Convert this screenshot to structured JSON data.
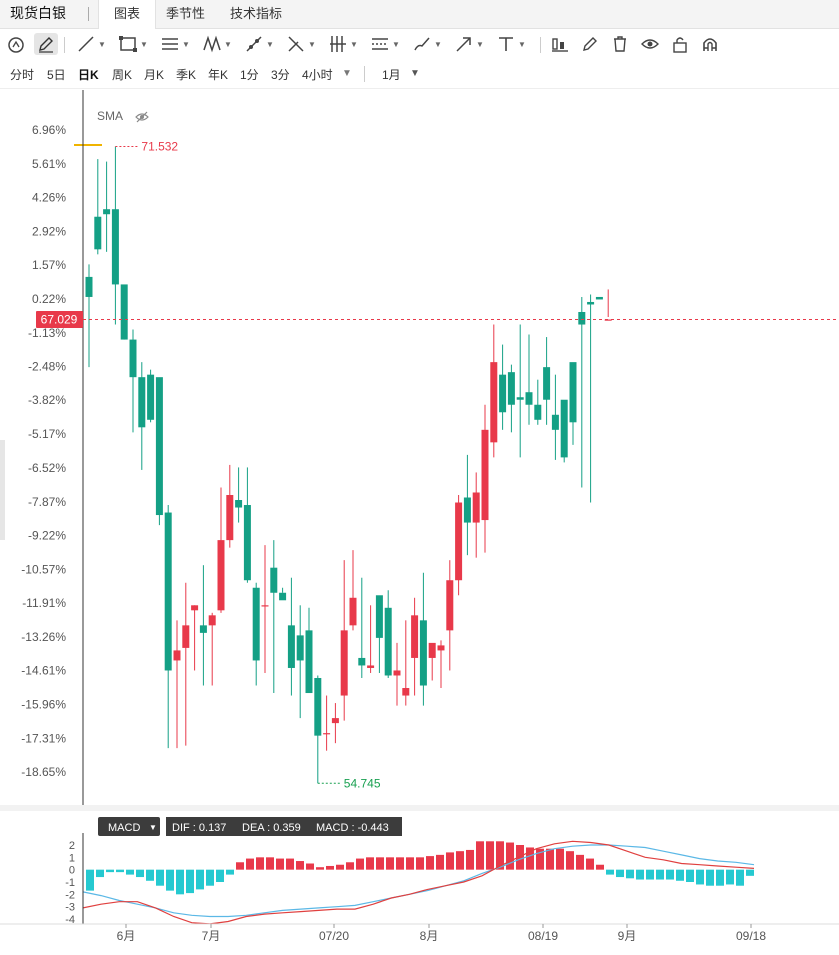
{
  "tabs": {
    "title": "现货白银",
    "chart": "图表",
    "seasonal": "季节性",
    "indicators": "技术指标"
  },
  "toolbar": {
    "icons": [
      "circle-cursor-icon",
      "pencil-icon",
      "trend-line-icon",
      "rectangle-icon",
      "parallel-lines-icon",
      "zigzag-icon",
      "ray-icon",
      "fork-icon",
      "fib-levels-icon",
      "measure-icon",
      "brush-icon",
      "arrow-icon",
      "text-icon",
      "bar-style-icon",
      "edit-icon",
      "trash-icon",
      "eye-icon",
      "lock-icon",
      "magnet-icon"
    ]
  },
  "periods": {
    "items": [
      "分时",
      "5日",
      "日K",
      "周K",
      "月K",
      "季K",
      "年K",
      "1分",
      "3分",
      "4小时"
    ],
    "selected": "日K",
    "range": "1月"
  },
  "colors": {
    "up": "#e8394a",
    "down": "#14a085",
    "dif": "#e0403f",
    "dea": "#5bb8e6"
  },
  "chart_data": {
    "type": "candlestick",
    "sma_label": "SMA",
    "y_axis_format": "percent",
    "y_ticks": [
      "6.96%",
      "5.61%",
      "4.26%",
      "2.92%",
      "1.57%",
      "0.22%",
      "-1.13%",
      "-2.48%",
      "-3.82%",
      "-5.17%",
      "-6.52%",
      "-7.87%",
      "-9.22%",
      "-10.57%",
      "-11.91%",
      "-13.26%",
      "-14.61%",
      "-15.96%",
      "-17.31%",
      "-18.65%"
    ],
    "y_tick_values": [
      6.96,
      5.61,
      4.26,
      2.92,
      1.57,
      0.22,
      -1.13,
      -2.48,
      -3.82,
      -5.17,
      -6.52,
      -7.87,
      -9.22,
      -10.57,
      -11.91,
      -13.26,
      -14.61,
      -15.96,
      -17.31,
      -18.65
    ],
    "current_price": "67.029",
    "high_label": "71.532",
    "low_label": "54.745",
    "x_ticks": [
      "6月",
      "7月",
      "07/20",
      "8月",
      "08/19",
      "9月",
      "09/18"
    ],
    "candles": [
      [
        1.1,
        0.3,
        1.6,
        -2.5
      ],
      [
        3.5,
        2.2,
        5.8,
        2.0
      ],
      [
        3.8,
        3.6,
        5.7,
        2.1
      ],
      [
        3.8,
        0.8,
        6.3,
        -0.8
      ],
      [
        0.8,
        -1.4,
        0.5,
        -1.4
      ],
      [
        -1.4,
        -2.9,
        -1.0,
        -5.1
      ],
      [
        -2.9,
        -4.9,
        -2.3,
        -6.6
      ],
      [
        -2.8,
        -4.6,
        -2.6,
        -4.7
      ],
      [
        -2.9,
        -8.4,
        -3.0,
        -8.8
      ],
      [
        -8.3,
        -14.6,
        -8.0,
        -17.7
      ],
      [
        -14.2,
        -13.8,
        -12.6,
        -17.7
      ],
      [
        -13.7,
        -12.8,
        -11.1,
        -17.6
      ],
      [
        -12.2,
        -12.0,
        -12.0,
        -14.6
      ],
      [
        -12.8,
        -13.1,
        -10.4,
        -15.2
      ],
      [
        -12.8,
        -12.4,
        -12.3,
        -15.2
      ],
      [
        -12.2,
        -9.4,
        -7.3,
        -12.3
      ],
      [
        -9.4,
        -7.6,
        -6.4,
        -9.7
      ],
      [
        -7.8,
        -8.1,
        -6.5,
        -8.7
      ],
      [
        -8.0,
        -11.0,
        -6.5,
        -11.1
      ],
      [
        -11.3,
        -14.2,
        -11.1,
        -15.2
      ],
      [
        -12.0,
        -12.0,
        -9.6,
        -14.7
      ],
      [
        -10.5,
        -11.5,
        -9.4,
        -15.5
      ],
      [
        -11.5,
        -11.8,
        -11.3,
        -11.5
      ],
      [
        -12.8,
        -14.5,
        -10.9,
        -15.6
      ],
      [
        -13.2,
        -14.2,
        -12.0,
        -16.5
      ],
      [
        -13.0,
        -15.5,
        -12.1,
        -15.5
      ],
      [
        -14.9,
        -17.2,
        -14.8,
        -19.1
      ],
      [
        -17.1,
        -17.1,
        -15.6,
        -17.8
      ],
      [
        -16.7,
        -16.5,
        -15.9,
        -17.5
      ],
      [
        -15.6,
        -13.0,
        -10.2,
        -16.6
      ],
      [
        -12.8,
        -11.7,
        -9.8,
        -13.0
      ],
      [
        -14.1,
        -14.4,
        -10.9,
        -14.9
      ],
      [
        -14.5,
        -14.4,
        -12.0,
        -14.7
      ],
      [
        -11.6,
        -13.3,
        -11.7,
        -14.7
      ],
      [
        -12.1,
        -14.8,
        -11.4,
        -14.9
      ],
      [
        -14.8,
        -14.6,
        -13.5,
        -16.0
      ],
      [
        -15.6,
        -15.3,
        -12.6,
        -16.0
      ],
      [
        -14.1,
        -12.4,
        -11.7,
        -15.6
      ],
      [
        -12.6,
        -15.2,
        -10.7,
        -16.0
      ],
      [
        -14.1,
        -13.5,
        -13.6,
        -15.0
      ],
      [
        -13.8,
        -13.6,
        -13.4,
        -15.3
      ],
      [
        -13.0,
        -11.0,
        -10.2,
        -14.6
      ],
      [
        -11.0,
        -7.9,
        -7.6,
        -11.6
      ],
      [
        -7.7,
        -8.7,
        -6.0,
        -10.0
      ],
      [
        -8.7,
        -7.5,
        -6.7,
        -10.1
      ],
      [
        -8.6,
        -5.0,
        -4.0,
        -9.9
      ],
      [
        -5.5,
        -2.3,
        -0.8,
        -6.1
      ],
      [
        -2.8,
        -4.3,
        -1.6,
        -5.0
      ],
      [
        -2.7,
        -4.0,
        -2.4,
        -5.1
      ],
      [
        -3.7,
        -3.8,
        -0.8,
        -6.1
      ],
      [
        -3.5,
        -4.0,
        -1.2,
        -4.8
      ],
      [
        -4.0,
        -4.6,
        -3.0,
        -4.8
      ],
      [
        -2.5,
        -3.8,
        -1.3,
        -4.8
      ],
      [
        -4.4,
        -5.0,
        -2.8,
        -6.2
      ],
      [
        -3.8,
        -6.1,
        -4.1,
        -6.3
      ],
      [
        -2.3,
        -4.7,
        -3.6,
        -5.6
      ],
      [
        -0.3,
        -0.8,
        0.3,
        -7.3
      ],
      [
        0.1,
        0.0,
        0.4,
        -7.9
      ],
      [
        0.3,
        0.2,
        0.4,
        0.4
      ],
      [
        -0.6,
        -0.6,
        -0.5,
        0.6
      ]
    ],
    "macd": {
      "label": "MACD",
      "dif": "0.137",
      "dea": "0.359",
      "value": "-0.443",
      "y_ticks": [
        "2",
        "1",
        "0",
        "-1",
        "-2",
        "-3",
        "-4"
      ],
      "hist": [
        -1.7,
        -0.6,
        -0.2,
        -0.2,
        -0.4,
        -0.6,
        -0.9,
        -1.3,
        -1.7,
        -2.0,
        -1.9,
        -1.6,
        -1.3,
        -1.0,
        -0.4,
        0.6,
        0.9,
        1.0,
        1.0,
        0.9,
        0.9,
        0.7,
        0.5,
        0.2,
        0.3,
        0.4,
        0.6,
        0.9,
        1.0,
        1.0,
        1.0,
        1.0,
        1.0,
        1.0,
        1.1,
        1.2,
        1.4,
        1.5,
        1.6,
        2.3,
        2.3,
        2.3,
        2.2,
        2.0,
        1.8,
        1.7,
        1.7,
        1.7,
        1.5,
        1.2,
        0.9,
        0.4,
        -0.4,
        -0.6,
        -0.7,
        -0.8,
        -0.8,
        -0.8,
        -0.8,
        -0.9,
        -1.0,
        -1.2,
        -1.3,
        -1.3,
        -1.2,
        -1.3,
        -0.5
      ],
      "dif_line": [
        -3.1,
        -2.8,
        -2.6,
        -2.6,
        -3.1,
        -3.8,
        -4.3,
        -4.4,
        -4.2,
        -3.8,
        -3.6,
        -3.5,
        -3.4,
        -3.3,
        -3.2,
        -3.2,
        -2.8,
        -2.3,
        -2.0,
        -1.6,
        -1.3,
        -1.0,
        -0.5,
        0.3,
        1.0,
        1.7,
        2.1,
        2.3,
        2.2,
        2.0,
        1.5,
        1.0,
        0.8,
        0.5,
        0.4,
        0.3,
        0.2,
        0.1
      ],
      "dea_line": [
        -1.8,
        -2.1,
        -2.5,
        -2.8,
        -3.1,
        -3.5,
        -3.7,
        -3.8,
        -3.8,
        -3.7,
        -3.5,
        -3.3,
        -3.2,
        -3.1,
        -3.0,
        -2.9,
        -2.6,
        -2.3,
        -2.0,
        -1.7,
        -1.3,
        -0.9,
        -0.3,
        0.2,
        0.8,
        1.3,
        1.7,
        1.9,
        2.0,
        2.0,
        1.9,
        1.8,
        1.5,
        1.2,
        0.9,
        0.7,
        0.6,
        0.4
      ]
    }
  }
}
